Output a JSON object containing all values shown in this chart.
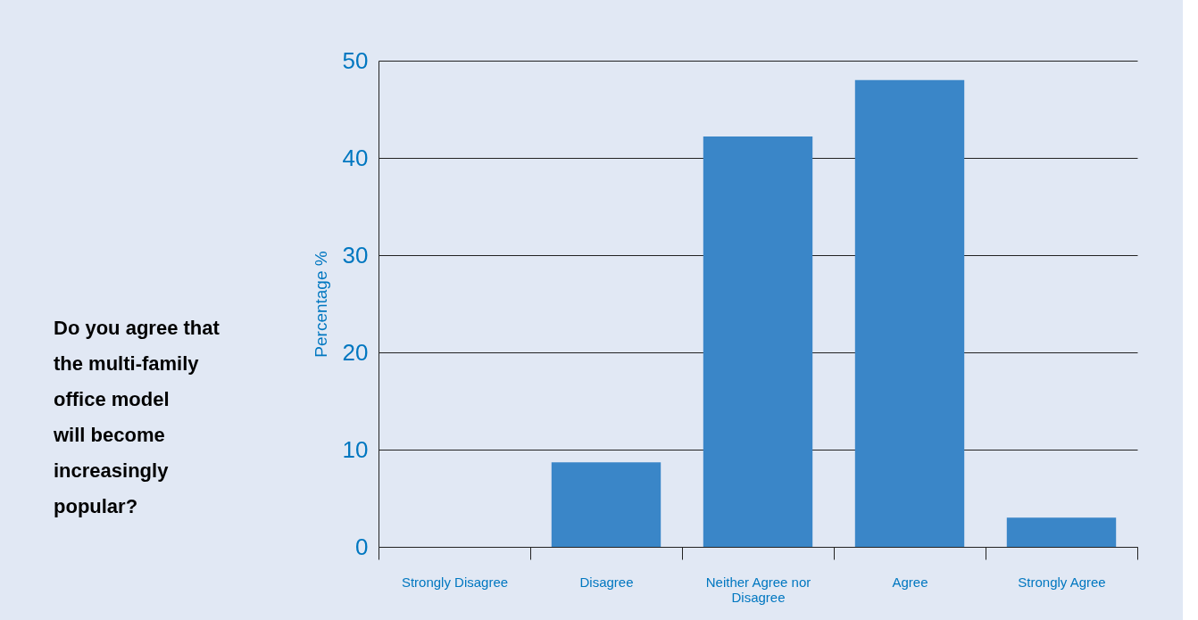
{
  "chart_data": {
    "type": "bar",
    "title": "Do you agree that\nthe multi-family\noffice model\nwill become\nincreasingly\npopular?",
    "ylabel": "Percentage %",
    "categories": [
      "Strongly Disagree",
      "Disagree",
      "Neither Agree nor Disagree",
      "Agree",
      "Strongly Agree"
    ],
    "values": [
      0,
      8.7,
      42.2,
      48.0,
      3.0
    ],
    "color": "#3a86c8",
    "ylim": [
      0,
      50
    ],
    "yticks": [
      0,
      10,
      20,
      30,
      40,
      50
    ],
    "grid": "y"
  }
}
